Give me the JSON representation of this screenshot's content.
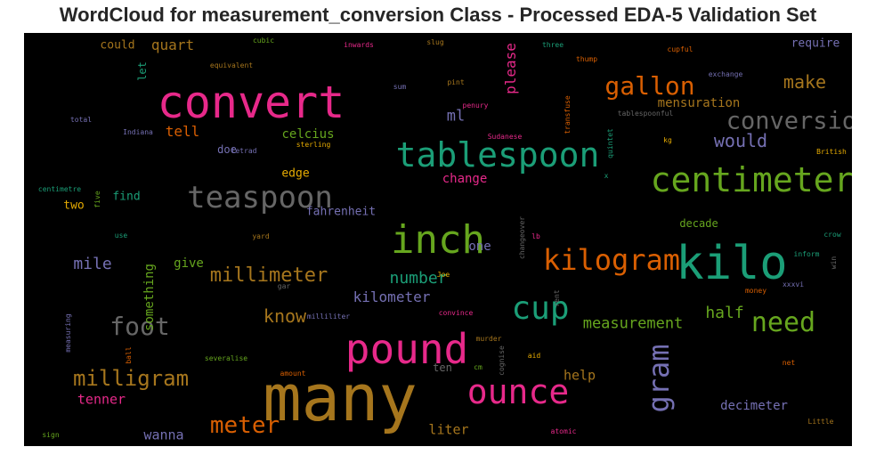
{
  "chart_data": {
    "type": "wordcloud",
    "title": "WordCloud for measurement_conversion Class - Processed EDA-5 Validation Set",
    "background": "#000000",
    "colormap": "Dark2",
    "words": [
      {
        "text": "many",
        "color": "#a6761d"
      },
      {
        "text": "kilo",
        "color": "#1b9e77"
      },
      {
        "text": "convert",
        "color": "#e7298a"
      },
      {
        "text": "inch",
        "color": "#66a61e"
      },
      {
        "text": "pound",
        "color": "#e7298a"
      },
      {
        "text": "tablespoon",
        "color": "#1b9e77"
      },
      {
        "text": "centimeter",
        "color": "#66a61e"
      },
      {
        "text": "ounce",
        "color": "#e7298a"
      },
      {
        "text": "teaspoon",
        "color": "#666666"
      },
      {
        "text": "kilogram",
        "color": "#d95f02"
      },
      {
        "text": "cup",
        "color": "#1b9e77"
      },
      {
        "text": "conversion",
        "color": "#666666"
      },
      {
        "text": "gallon",
        "color": "#d95f02"
      },
      {
        "text": "need",
        "color": "#66a61e"
      },
      {
        "text": "foot",
        "color": "#666666"
      },
      {
        "text": "meter",
        "color": "#d95f02"
      },
      {
        "text": "milligram",
        "color": "#a6761d"
      },
      {
        "text": "gram",
        "color": "#7570b3"
      },
      {
        "text": "millimeter",
        "color": "#a6761d"
      },
      {
        "text": "make",
        "color": "#a6761d"
      },
      {
        "text": "would",
        "color": "#7570b3"
      },
      {
        "text": "know",
        "color": "#a6761d"
      },
      {
        "text": "mile",
        "color": "#7570b3"
      },
      {
        "text": "measurement",
        "color": "#66a61e"
      },
      {
        "text": "half",
        "color": "#66a61e"
      },
      {
        "text": "number",
        "color": "#1b9e77"
      },
      {
        "text": "kilometer",
        "color": "#7570b3"
      },
      {
        "text": "ml",
        "color": "#7570b3"
      },
      {
        "text": "tell",
        "color": "#d95f02"
      },
      {
        "text": "mensuration",
        "color": "#a6761d"
      },
      {
        "text": "quart",
        "color": "#a6761d"
      },
      {
        "text": "celcius",
        "color": "#66a61e"
      },
      {
        "text": "please",
        "color": "#e7298a"
      },
      {
        "text": "something",
        "color": "#66a61e"
      },
      {
        "text": "liter",
        "color": "#a6761d"
      },
      {
        "text": "tenner",
        "color": "#e7298a"
      },
      {
        "text": "wanna",
        "color": "#7570b3"
      },
      {
        "text": "help",
        "color": "#a6761d"
      },
      {
        "text": "decimeter",
        "color": "#7570b3"
      },
      {
        "text": "change",
        "color": "#e7298a"
      },
      {
        "text": "fahrenheit",
        "color": "#7570b3"
      },
      {
        "text": "edge",
        "color": "#e6ab02"
      },
      {
        "text": "require",
        "color": "#7570b3"
      },
      {
        "text": "give",
        "color": "#66a61e"
      },
      {
        "text": "one",
        "color": "#7570b3"
      },
      {
        "text": "find",
        "color": "#1b9e77"
      },
      {
        "text": "two",
        "color": "#e6ab02"
      },
      {
        "text": "could",
        "color": "#a6761d"
      },
      {
        "text": "doe",
        "color": "#7570b3"
      },
      {
        "text": "decade",
        "color": "#66a61e"
      },
      {
        "text": "let",
        "color": "#1b9e77"
      },
      {
        "text": "ten",
        "color": "#666666"
      },
      {
        "text": "cubic",
        "color": "#66a61e"
      },
      {
        "text": "inwards",
        "color": "#e7298a"
      },
      {
        "text": "slug",
        "color": "#a6761d"
      },
      {
        "text": "three",
        "color": "#1b9e77"
      },
      {
        "text": "cupful",
        "color": "#d95f02"
      },
      {
        "text": "equivalent",
        "color": "#a6761d"
      },
      {
        "text": "thump",
        "color": "#d95f02"
      },
      {
        "text": "exchange",
        "color": "#7570b3"
      },
      {
        "text": "pint",
        "color": "#a6761d"
      },
      {
        "text": "sum",
        "color": "#7570b3"
      },
      {
        "text": "penury",
        "color": "#e7298a"
      },
      {
        "text": "transfuse",
        "color": "#d95f02"
      },
      {
        "text": "tablespoonful",
        "color": "#666666"
      },
      {
        "text": "total",
        "color": "#7570b3"
      },
      {
        "text": "Indiana",
        "color": "#7570b3"
      },
      {
        "text": "sterling",
        "color": "#e6ab02"
      },
      {
        "text": "Sudanese",
        "color": "#e7298a"
      },
      {
        "text": "quintet",
        "color": "#1b9e77"
      },
      {
        "text": "kg",
        "color": "#e6ab02"
      },
      {
        "text": "British",
        "color": "#e6ab02"
      },
      {
        "text": "tetrad",
        "color": "#7570b3"
      },
      {
        "text": "x",
        "color": "#1b9e77"
      },
      {
        "text": "centimetre",
        "color": "#1b9e77"
      },
      {
        "text": "five",
        "color": "#66a61e"
      },
      {
        "text": "use",
        "color": "#1b9e77"
      },
      {
        "text": "yard",
        "color": "#a6761d"
      },
      {
        "text": "changeover",
        "color": "#666666"
      },
      {
        "text": "lb",
        "color": "#e7298a"
      },
      {
        "text": "crow",
        "color": "#1b9e77"
      },
      {
        "text": "inform",
        "color": "#1b9e77"
      },
      {
        "text": "win",
        "color": "#666666"
      },
      {
        "text": "Joe",
        "color": "#e6ab02"
      },
      {
        "text": "gar",
        "color": "#666666"
      },
      {
        "text": "xxxvi",
        "color": "#7570b3"
      },
      {
        "text": "rent",
        "color": "#666666"
      },
      {
        "text": "money",
        "color": "#d95f02"
      },
      {
        "text": "milliliter",
        "color": "#7570b3"
      },
      {
        "text": "convince",
        "color": "#e7298a"
      },
      {
        "text": "measuring",
        "color": "#7570b3"
      },
      {
        "text": "murder",
        "color": "#a6761d"
      },
      {
        "text": "cognise",
        "color": "#666666"
      },
      {
        "text": "ball",
        "color": "#d95f02"
      },
      {
        "text": "severalise",
        "color": "#66a61e"
      },
      {
        "text": "aid",
        "color": "#e6ab02"
      },
      {
        "text": "net",
        "color": "#d95f02"
      },
      {
        "text": "amount",
        "color": "#d95f02"
      },
      {
        "text": "cm",
        "color": "#66a61e"
      },
      {
        "text": "Little",
        "color": "#a6761d"
      },
      {
        "text": "sign",
        "color": "#66a61e"
      },
      {
        "text": "atomic",
        "color": "#e7298a"
      }
    ]
  }
}
